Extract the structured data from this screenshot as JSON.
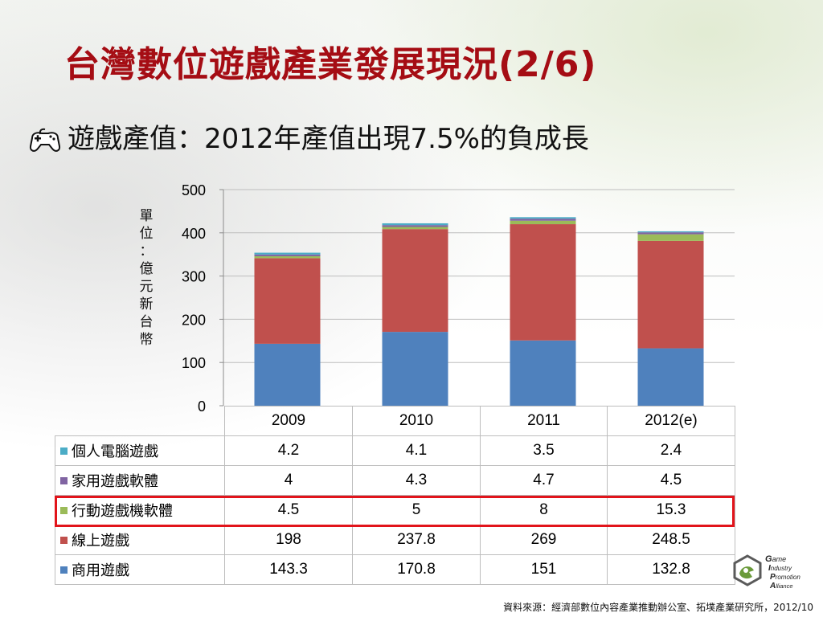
{
  "slide": {
    "title": "台灣數位遊戲產業發展現況(2/6)",
    "subtitle": "遊戲產值：2012年產值出現7.5%的負成長",
    "source": "資料來源：經濟部數位內容產業推動辦公室、拓墣產業研究所，2012/10"
  },
  "logo": {
    "lines": [
      "ame",
      "ndustry",
      "romotion",
      "lliance"
    ]
  },
  "chart_data": {
    "type": "bar",
    "stacked": true,
    "categories": [
      "2009",
      "2010",
      "2011",
      "2012(e)"
    ],
    "ylabel": "單位：億元新台幣",
    "ylabel_chars": [
      "單",
      "位",
      "：",
      "億",
      "元",
      "新",
      "台",
      "幣"
    ],
    "ylim": [
      0,
      500
    ],
    "yticks": [
      "0",
      "100",
      "200",
      "300",
      "400",
      "500"
    ],
    "grid": true,
    "series": [
      {
        "name": "商用遊戲",
        "color": "#4f81bd",
        "values": [
          143.3,
          170.8,
          151,
          132.8
        ],
        "labels": [
          "143.3",
          "170.8",
          "151",
          "132.8"
        ]
      },
      {
        "name": "線上遊戲",
        "color": "#c0504d",
        "values": [
          198,
          237.8,
          269,
          248.5
        ],
        "labels": [
          "198",
          "237.8",
          "269",
          "248.5"
        ]
      },
      {
        "name": "行動遊戲機軟體",
        "color": "#9bbb59",
        "values": [
          4.5,
          5,
          8,
          15.3
        ],
        "labels": [
          "4.5",
          "5",
          "8",
          "15.3"
        ]
      },
      {
        "name": "家用遊戲軟體",
        "color": "#8064a2",
        "values": [
          4,
          4.3,
          4.7,
          4.5
        ],
        "labels": [
          "4",
          "4.3",
          "4.7",
          "4.5"
        ]
      },
      {
        "name": "個人電腦遊戲",
        "color": "#4bacc6",
        "values": [
          4.2,
          4.1,
          3.5,
          2.4
        ],
        "labels": [
          "4.2",
          "4.1",
          "3.5",
          "2.4"
        ]
      }
    ],
    "table_row_order": [
      4,
      3,
      2,
      1,
      0
    ],
    "highlight_row": "行動遊戲機軟體"
  }
}
